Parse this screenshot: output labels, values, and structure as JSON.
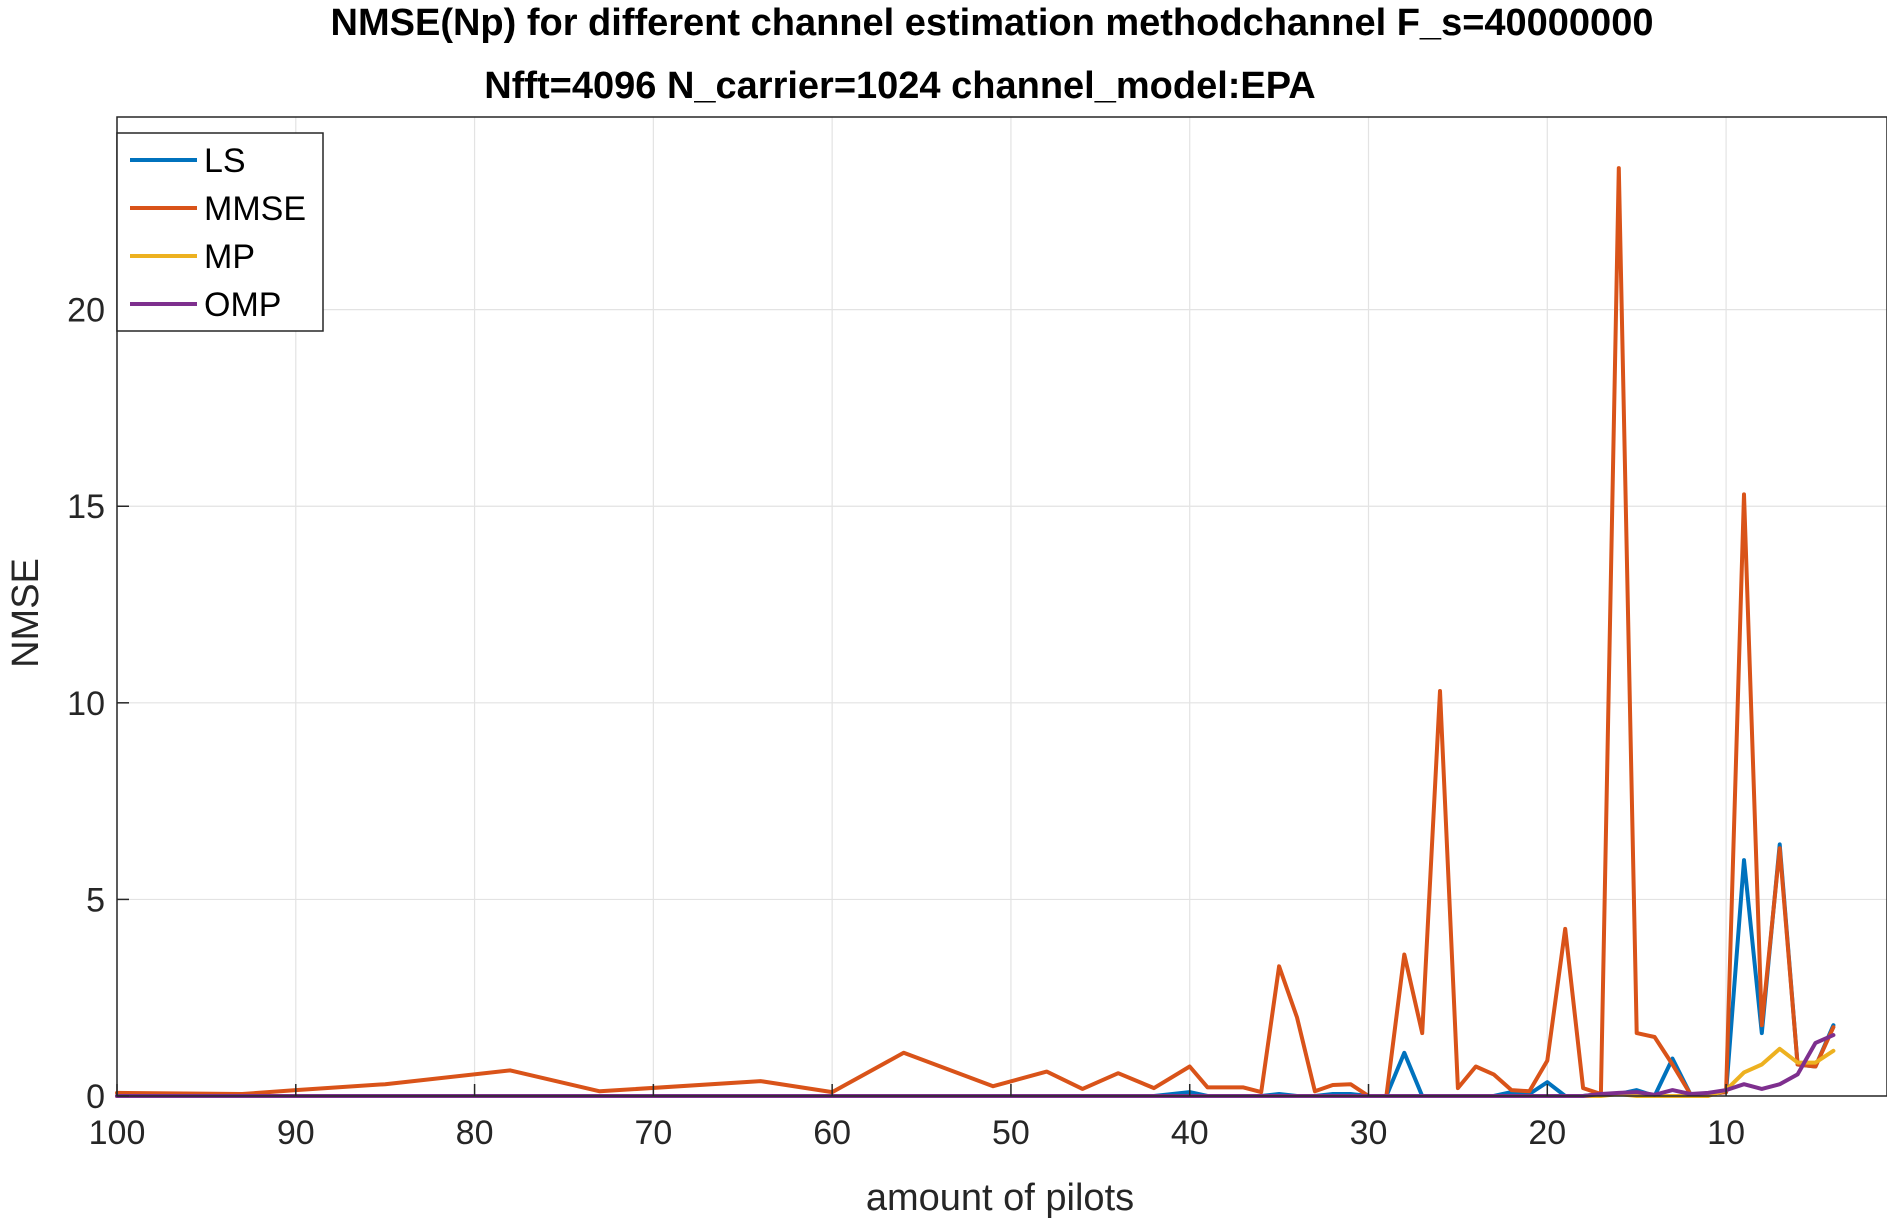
{
  "chart_data": {
    "type": "line",
    "title": "NMSE(Np) for different channel estimation methodchannel F_s=40000000",
    "subtitle": "Nfft=4096 N_carrier=1024 channel_model:EPA",
    "xlabel": "amount of pilots",
    "ylabel": "NMSE",
    "xlim": [
      100,
      1
    ],
    "ylim": [
      0,
      24.9
    ],
    "x_reversed": true,
    "grid": true,
    "legend_position": "top-left",
    "x_ticks": [
      100,
      90,
      80,
      70,
      60,
      50,
      40,
      30,
      20,
      10
    ],
    "x_tick_labels": [
      "100",
      "90",
      "80",
      "70",
      "60",
      "50",
      "40",
      "30",
      "20",
      "10"
    ],
    "y_ticks": [
      0,
      5,
      10,
      15,
      20
    ],
    "y_tick_labels": [
      "0",
      "5",
      "10",
      "15",
      "20"
    ],
    "series": [
      {
        "name": "LS",
        "color": "#0072BD",
        "points": [
          [
            100,
            0.0
          ],
          [
            93,
            0.0
          ],
          [
            90,
            0.0
          ],
          [
            85,
            0.0
          ],
          [
            78,
            0.0
          ],
          [
            73,
            0.0
          ],
          [
            64,
            0.0
          ],
          [
            60,
            0.0
          ],
          [
            56,
            0.0
          ],
          [
            51,
            0.0
          ],
          [
            48,
            0.0
          ],
          [
            46,
            0.0
          ],
          [
            44,
            0.0
          ],
          [
            42,
            0.0
          ],
          [
            40,
            0.1
          ],
          [
            39,
            0.0
          ],
          [
            37,
            0.0
          ],
          [
            36,
            0.0
          ],
          [
            35,
            0.05
          ],
          [
            34,
            0.0
          ],
          [
            33,
            0.0
          ],
          [
            32,
            0.05
          ],
          [
            31,
            0.05
          ],
          [
            30,
            0.0
          ],
          [
            29,
            0.0
          ],
          [
            28,
            1.1
          ],
          [
            27,
            0.0
          ],
          [
            26,
            0.0
          ],
          [
            25,
            0.0
          ],
          [
            24,
            0.0
          ],
          [
            23,
            0.0
          ],
          [
            22,
            0.1
          ],
          [
            21,
            0.05
          ],
          [
            20,
            0.35
          ],
          [
            19,
            0.0
          ],
          [
            18,
            0.0
          ],
          [
            17,
            0.05
          ],
          [
            16,
            0.05
          ],
          [
            15,
            0.15
          ],
          [
            14,
            0.0
          ],
          [
            13,
            0.95
          ],
          [
            12,
            0.05
          ],
          [
            11,
            0.05
          ],
          [
            10,
            0.1
          ],
          [
            9,
            6.0
          ],
          [
            8,
            1.6
          ],
          [
            7,
            6.4
          ],
          [
            6,
            0.8
          ],
          [
            5,
            0.75
          ],
          [
            4,
            1.8
          ]
        ]
      },
      {
        "name": "MMSE",
        "color": "#D95319",
        "points": [
          [
            100,
            0.08
          ],
          [
            93,
            0.05
          ],
          [
            90,
            0.15
          ],
          [
            85,
            0.3
          ],
          [
            78,
            0.65
          ],
          [
            73,
            0.12
          ],
          [
            64,
            0.38
          ],
          [
            60,
            0.1
          ],
          [
            56,
            1.1
          ],
          [
            51,
            0.25
          ],
          [
            48,
            0.62
          ],
          [
            46,
            0.18
          ],
          [
            44,
            0.58
          ],
          [
            42,
            0.2
          ],
          [
            40,
            0.75
          ],
          [
            39,
            0.22
          ],
          [
            37,
            0.22
          ],
          [
            36,
            0.1
          ],
          [
            35,
            3.3
          ],
          [
            34,
            2.0
          ],
          [
            33,
            0.12
          ],
          [
            32,
            0.28
          ],
          [
            31,
            0.3
          ],
          [
            30,
            0.0
          ],
          [
            29,
            0.0
          ],
          [
            28,
            3.6
          ],
          [
            27,
            1.6
          ],
          [
            26,
            10.3
          ],
          [
            25,
            0.2
          ],
          [
            24,
            0.75
          ],
          [
            23,
            0.55
          ],
          [
            22,
            0.15
          ],
          [
            21,
            0.12
          ],
          [
            20,
            0.9
          ],
          [
            19,
            4.25
          ],
          [
            18,
            0.2
          ],
          [
            17,
            0.05
          ],
          [
            16,
            23.6
          ],
          [
            15,
            1.6
          ],
          [
            14,
            1.5
          ],
          [
            13,
            0.8
          ],
          [
            12,
            0.05
          ],
          [
            11,
            0.05
          ],
          [
            10,
            0.1
          ],
          [
            9,
            15.3
          ],
          [
            8,
            1.8
          ],
          [
            7,
            6.3
          ],
          [
            6,
            0.8
          ],
          [
            5,
            0.75
          ],
          [
            4,
            1.75
          ]
        ]
      },
      {
        "name": "MP",
        "color": "#EDB120",
        "points": [
          [
            100,
            0.0
          ],
          [
            93,
            0.0
          ],
          [
            90,
            0.0
          ],
          [
            85,
            0.0
          ],
          [
            78,
            0.0
          ],
          [
            73,
            0.0
          ],
          [
            64,
            0.0
          ],
          [
            60,
            0.0
          ],
          [
            56,
            0.0
          ],
          [
            51,
            0.0
          ],
          [
            48,
            0.0
          ],
          [
            46,
            0.0
          ],
          [
            44,
            0.0
          ],
          [
            42,
            0.0
          ],
          [
            40,
            0.0
          ],
          [
            39,
            0.0
          ],
          [
            37,
            0.0
          ],
          [
            36,
            0.0
          ],
          [
            35,
            0.0
          ],
          [
            34,
            0.0
          ],
          [
            33,
            0.0
          ],
          [
            32,
            0.0
          ],
          [
            31,
            0.0
          ],
          [
            30,
            0.0
          ],
          [
            29,
            0.0
          ],
          [
            28,
            0.0
          ],
          [
            27,
            0.0
          ],
          [
            26,
            0.0
          ],
          [
            25,
            0.0
          ],
          [
            24,
            0.0
          ],
          [
            23,
            0.0
          ],
          [
            22,
            0.0
          ],
          [
            21,
            0.0
          ],
          [
            20,
            0.0
          ],
          [
            19,
            0.0
          ],
          [
            18,
            0.0
          ],
          [
            17,
            0.0
          ],
          [
            16,
            0.05
          ],
          [
            15,
            0.0
          ],
          [
            14,
            0.0
          ],
          [
            13,
            0.0
          ],
          [
            12,
            0.0
          ],
          [
            11,
            0.0
          ],
          [
            10,
            0.15
          ],
          [
            9,
            0.6
          ],
          [
            8,
            0.8
          ],
          [
            7,
            1.2
          ],
          [
            6,
            0.85
          ],
          [
            5,
            0.85
          ],
          [
            4,
            1.15
          ]
        ]
      },
      {
        "name": "OMP",
        "color": "#7E2F8E",
        "points": [
          [
            100,
            0.0
          ],
          [
            93,
            0.0
          ],
          [
            90,
            0.0
          ],
          [
            85,
            0.0
          ],
          [
            78,
            0.0
          ],
          [
            73,
            0.0
          ],
          [
            64,
            0.0
          ],
          [
            60,
            0.0
          ],
          [
            56,
            0.0
          ],
          [
            51,
            0.0
          ],
          [
            48,
            0.0
          ],
          [
            46,
            0.0
          ],
          [
            44,
            0.0
          ],
          [
            42,
            0.0
          ],
          [
            40,
            0.0
          ],
          [
            39,
            0.0
          ],
          [
            37,
            0.0
          ],
          [
            36,
            0.0
          ],
          [
            35,
            0.0
          ],
          [
            34,
            0.0
          ],
          [
            33,
            0.0
          ],
          [
            32,
            0.0
          ],
          [
            31,
            0.0
          ],
          [
            30,
            0.0
          ],
          [
            29,
            0.0
          ],
          [
            28,
            0.0
          ],
          [
            27,
            0.0
          ],
          [
            26,
            0.0
          ],
          [
            25,
            0.0
          ],
          [
            24,
            0.0
          ],
          [
            23,
            0.0
          ],
          [
            22,
            0.0
          ],
          [
            21,
            0.0
          ],
          [
            20,
            0.0
          ],
          [
            19,
            0.0
          ],
          [
            18,
            0.0
          ],
          [
            17,
            0.05
          ],
          [
            16,
            0.08
          ],
          [
            15,
            0.1
          ],
          [
            14,
            0.03
          ],
          [
            13,
            0.15
          ],
          [
            12,
            0.05
          ],
          [
            11,
            0.08
          ],
          [
            10,
            0.15
          ],
          [
            9,
            0.3
          ],
          [
            8,
            0.18
          ],
          [
            7,
            0.3
          ],
          [
            6,
            0.55
          ],
          [
            5,
            1.35
          ],
          [
            4,
            1.55
          ]
        ]
      }
    ]
  }
}
